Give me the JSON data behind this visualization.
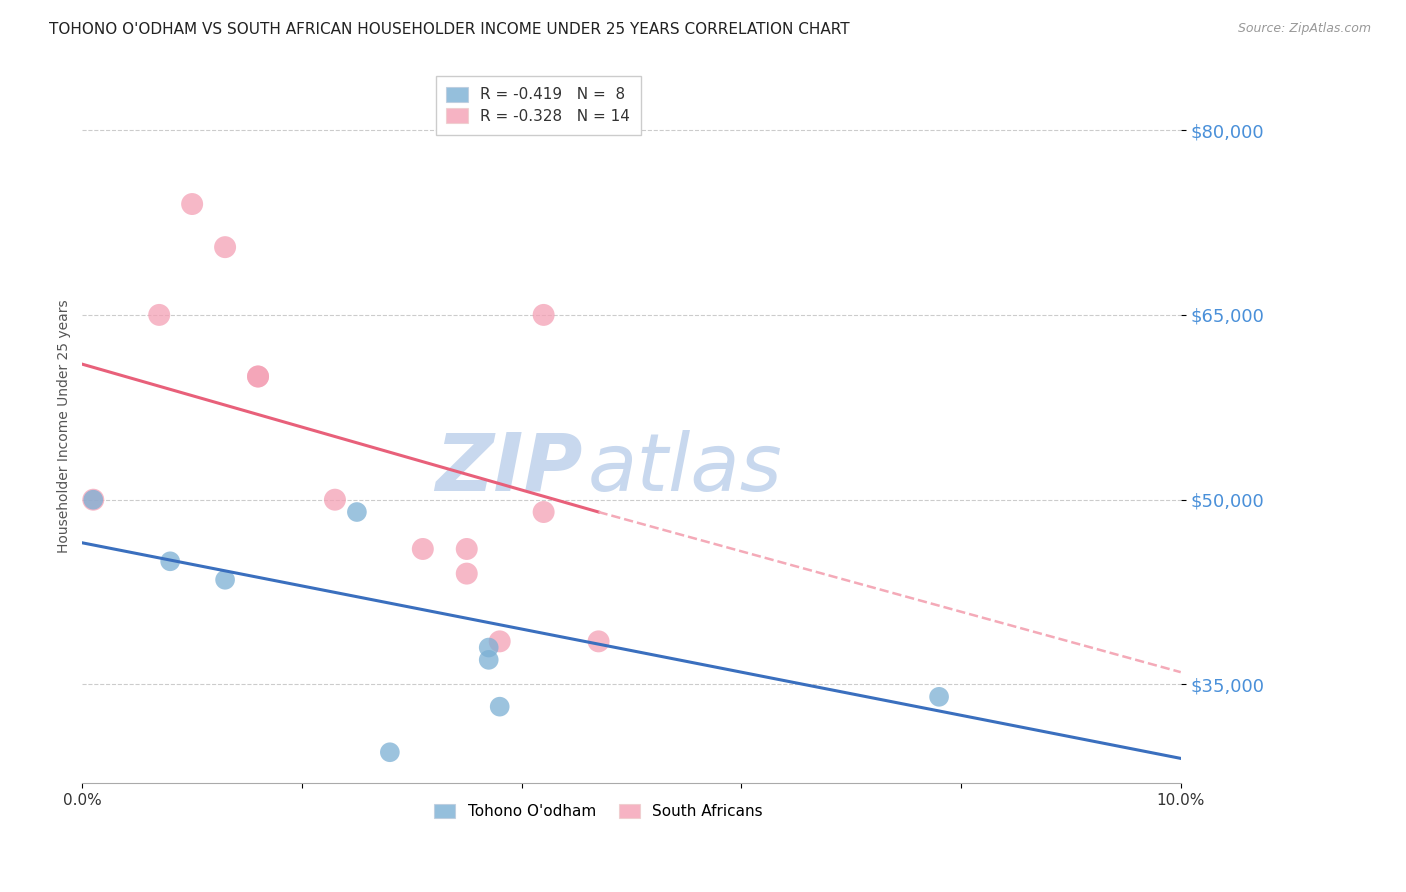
{
  "title": "TOHONO O'ODHAM VS SOUTH AFRICAN HOUSEHOLDER INCOME UNDER 25 YEARS CORRELATION CHART",
  "source": "Source: ZipAtlas.com",
  "ylabel": "Householder Income Under 25 years",
  "xmin": 0.0,
  "xmax": 0.1,
  "ymin": 27000,
  "ymax": 85000,
  "yticks": [
    35000,
    50000,
    65000,
    80000
  ],
  "ytick_labels": [
    "$35,000",
    "$50,000",
    "$65,000",
    "$80,000"
  ],
  "xticks": [
    0.0,
    0.02,
    0.04,
    0.06,
    0.08,
    0.1
  ],
  "xtick_labels": [
    "0.0%",
    "",
    "",
    "",
    "",
    "10.0%"
  ],
  "legend_entries": [
    {
      "label": "R = -0.419   N =  8",
      "color": "#a8c4e0"
    },
    {
      "label": "R = -0.328   N = 14",
      "color": "#f4a0b0"
    }
  ],
  "tohono_x": [
    0.001,
    0.008,
    0.013,
    0.025,
    0.037,
    0.037,
    0.038,
    0.078
  ],
  "tohono_y": [
    50000,
    45000,
    43500,
    49000,
    38000,
    37000,
    33200,
    34000
  ],
  "tohono_outlier_x": [
    0.028
  ],
  "tohono_outlier_y": [
    29500
  ],
  "south_african_x": [
    0.001,
    0.007,
    0.01,
    0.013,
    0.016,
    0.016,
    0.023,
    0.031,
    0.035,
    0.035,
    0.038,
    0.042,
    0.042,
    0.047
  ],
  "south_african_y": [
    50000,
    65000,
    74000,
    70500,
    60000,
    60000,
    50000,
    46000,
    44000,
    46000,
    38500,
    65000,
    49000,
    38500
  ],
  "tohono_color": "#7bafd4",
  "south_african_color": "#f4a0b5",
  "tohono_trendline_color": "#3a6fbe",
  "south_african_trendline_solid_color": "#e8607a",
  "south_african_trendline_dash_color": "#f4aab8",
  "watermark_zip_color": "#c8d8ee",
  "watermark_atlas_color": "#c8d8ee",
  "background_color": "#ffffff",
  "grid_color": "#cccccc",
  "ytick_color": "#4a90d9",
  "title_fontsize": 11,
  "source_fontsize": 9,
  "axis_label_fontsize": 10,
  "legend_fontsize": 11,
  "marker_size_tohono": 200,
  "marker_size_sa": 250
}
